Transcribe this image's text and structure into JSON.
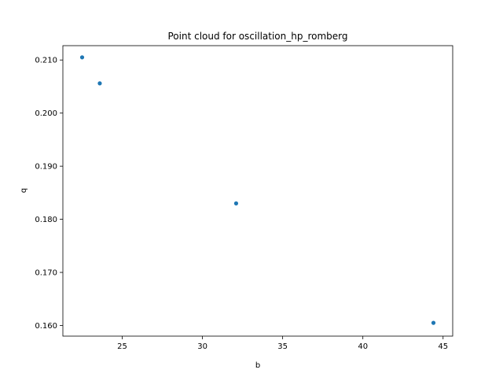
{
  "chart_data": {
    "type": "scatter",
    "title": "Point cloud for oscillation_hp_romberg",
    "xlabel": "b",
    "ylabel": "q",
    "xlim": [
      21.3,
      45.6
    ],
    "ylim": [
      0.158,
      0.2127
    ],
    "xticks": [
      25,
      30,
      35,
      40,
      45
    ],
    "yticks": [
      0.16,
      0.17,
      0.18,
      0.19,
      0.2,
      0.21
    ],
    "xtick_labels": [
      "25",
      "30",
      "35",
      "40",
      "45"
    ],
    "ytick_labels": [
      "0.160",
      "0.170",
      "0.180",
      "0.190",
      "0.200",
      "0.210"
    ],
    "grid": false,
    "marker_color": "#1f77b4",
    "points": [
      {
        "x": 22.5,
        "y": 0.2105
      },
      {
        "x": 23.6,
        "y": 0.2056
      },
      {
        "x": 32.1,
        "y": 0.183
      },
      {
        "x": 44.4,
        "y": 0.1605
      }
    ]
  }
}
